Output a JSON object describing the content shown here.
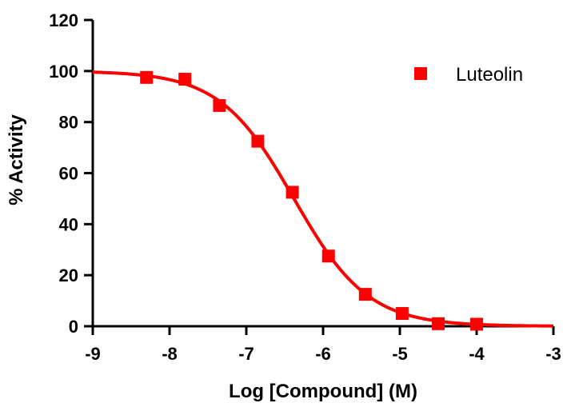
{
  "chart_data": {
    "type": "scatter",
    "title": "",
    "xlabel": "Log [Compound] (M)",
    "ylabel": "% Activity",
    "xlim": [
      -9,
      -3
    ],
    "ylim": [
      0,
      120
    ],
    "x_ticks": [
      -9,
      -8,
      -7,
      -6,
      -5,
      -4,
      -3
    ],
    "y_ticks": [
      0,
      20,
      40,
      60,
      80,
      100,
      120
    ],
    "legend_position": "top-right",
    "grid": false,
    "series": [
      {
        "name": "Luteolin",
        "color": "#ff0000",
        "marker": "square",
        "points": [
          {
            "x": -8.3,
            "y": 97.5
          },
          {
            "x": -7.8,
            "y": 96.8
          },
          {
            "x": -7.35,
            "y": 86.5
          },
          {
            "x": -6.85,
            "y": 72.5
          },
          {
            "x": -6.4,
            "y": 52.5
          },
          {
            "x": -5.93,
            "y": 27.5
          },
          {
            "x": -5.45,
            "y": 12.5
          },
          {
            "x": -4.97,
            "y": 5
          },
          {
            "x": -4.5,
            "y": 1
          },
          {
            "x": -4.0,
            "y": 0.8
          }
        ],
        "fit": {
          "model": "sigmoidal-dose-response",
          "top": 100,
          "bottom": 0,
          "logIC50": -6.38,
          "hill": -0.9
        }
      }
    ]
  }
}
